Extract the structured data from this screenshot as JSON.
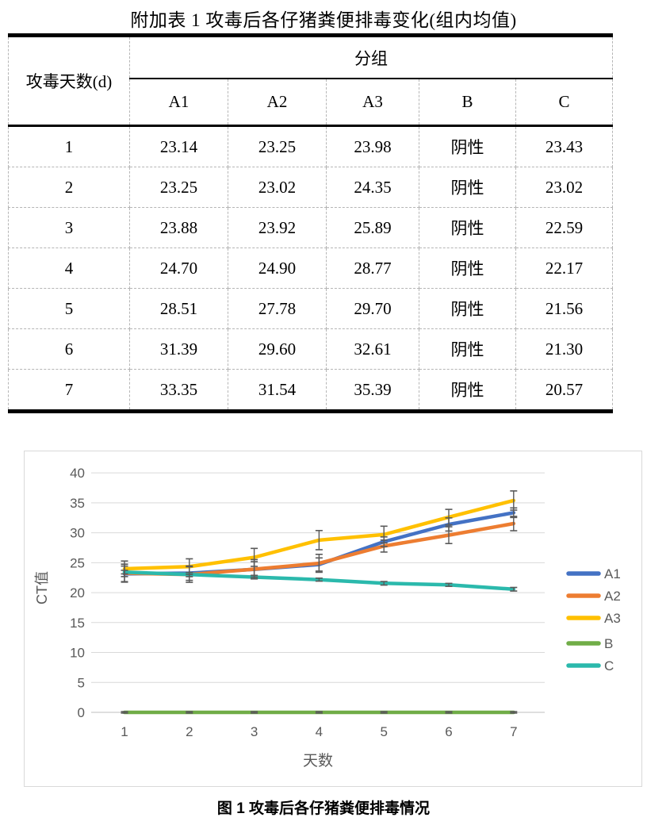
{
  "table": {
    "title": "附加表 1  攻毒后各仔猪粪便排毒变化(组内均值)",
    "corner_header": "攻毒天数(d)",
    "group_header": "分组",
    "columns": [
      "A1",
      "A2",
      "A3",
      "B",
      "C"
    ],
    "rows": [
      {
        "day": "1",
        "cells": [
          "23.14",
          "23.25",
          "23.98",
          "阴性",
          "23.43"
        ]
      },
      {
        "day": "2",
        "cells": [
          "23.25",
          "23.02",
          "24.35",
          "阴性",
          "23.02"
        ]
      },
      {
        "day": "3",
        "cells": [
          "23.88",
          "23.92",
          "25.89",
          "阴性",
          "22.59"
        ]
      },
      {
        "day": "4",
        "cells": [
          "24.70",
          "24.90",
          "28.77",
          "阴性",
          "22.17"
        ]
      },
      {
        "day": "5",
        "cells": [
          "28.51",
          "27.78",
          "29.70",
          "阴性",
          "21.56"
        ]
      },
      {
        "day": "6",
        "cells": [
          "31.39",
          "29.60",
          "32.61",
          "阴性",
          "21.30"
        ]
      },
      {
        "day": "7",
        "cells": [
          "33.35",
          "31.54",
          "35.39",
          "阴性",
          "20.57"
        ]
      }
    ]
  },
  "figure": {
    "caption": "图 1  攻毒后各仔猪粪便排毒情况"
  },
  "chart_data": {
    "type": "line",
    "title": "",
    "xlabel": "天数",
    "ylabel": "CT值",
    "x": [
      1,
      2,
      3,
      4,
      5,
      6,
      7
    ],
    "ylim": [
      0,
      40
    ],
    "ytick_step": 5,
    "grid": true,
    "legend_position": "right",
    "text_color": "#595959",
    "grid_color": "#d9d9d9",
    "axis_line_color": "#bfbfbf",
    "error_bar_color": "#595959",
    "series": [
      {
        "name": "A1",
        "color": "#4472c4",
        "values": [
          23.14,
          23.25,
          23.88,
          24.7,
          28.51,
          31.39,
          33.35
        ],
        "errors": [
          1.3,
          1.2,
          1.3,
          1.1,
          0.8,
          1.1,
          0.8
        ]
      },
      {
        "name": "A2",
        "color": "#ed7d31",
        "values": [
          23.25,
          23.02,
          23.92,
          24.9,
          27.78,
          29.6,
          31.54
        ],
        "errors": [
          1.5,
          1.3,
          1.6,
          1.5,
          1.0,
          1.4,
          1.2
        ]
      },
      {
        "name": "A3",
        "color": "#ffc000",
        "values": [
          23.98,
          24.35,
          25.89,
          28.77,
          29.7,
          32.61,
          35.39
        ],
        "errors": [
          1.3,
          1.3,
          1.5,
          1.6,
          1.4,
          1.3,
          1.6
        ]
      },
      {
        "name": "B",
        "color": "#70ad47",
        "values": [
          0,
          0,
          0,
          0,
          0,
          0,
          0
        ],
        "errors": [
          0.12,
          0.12,
          0.12,
          0.12,
          0.12,
          0.12,
          0.12
        ]
      },
      {
        "name": "C",
        "color": "#2bb9ac",
        "values": [
          23.43,
          23.02,
          22.59,
          22.17,
          21.56,
          21.3,
          20.57
        ],
        "errors": [
          0.3,
          0.35,
          0.3,
          0.25,
          0.3,
          0.25,
          0.3
        ]
      }
    ]
  }
}
